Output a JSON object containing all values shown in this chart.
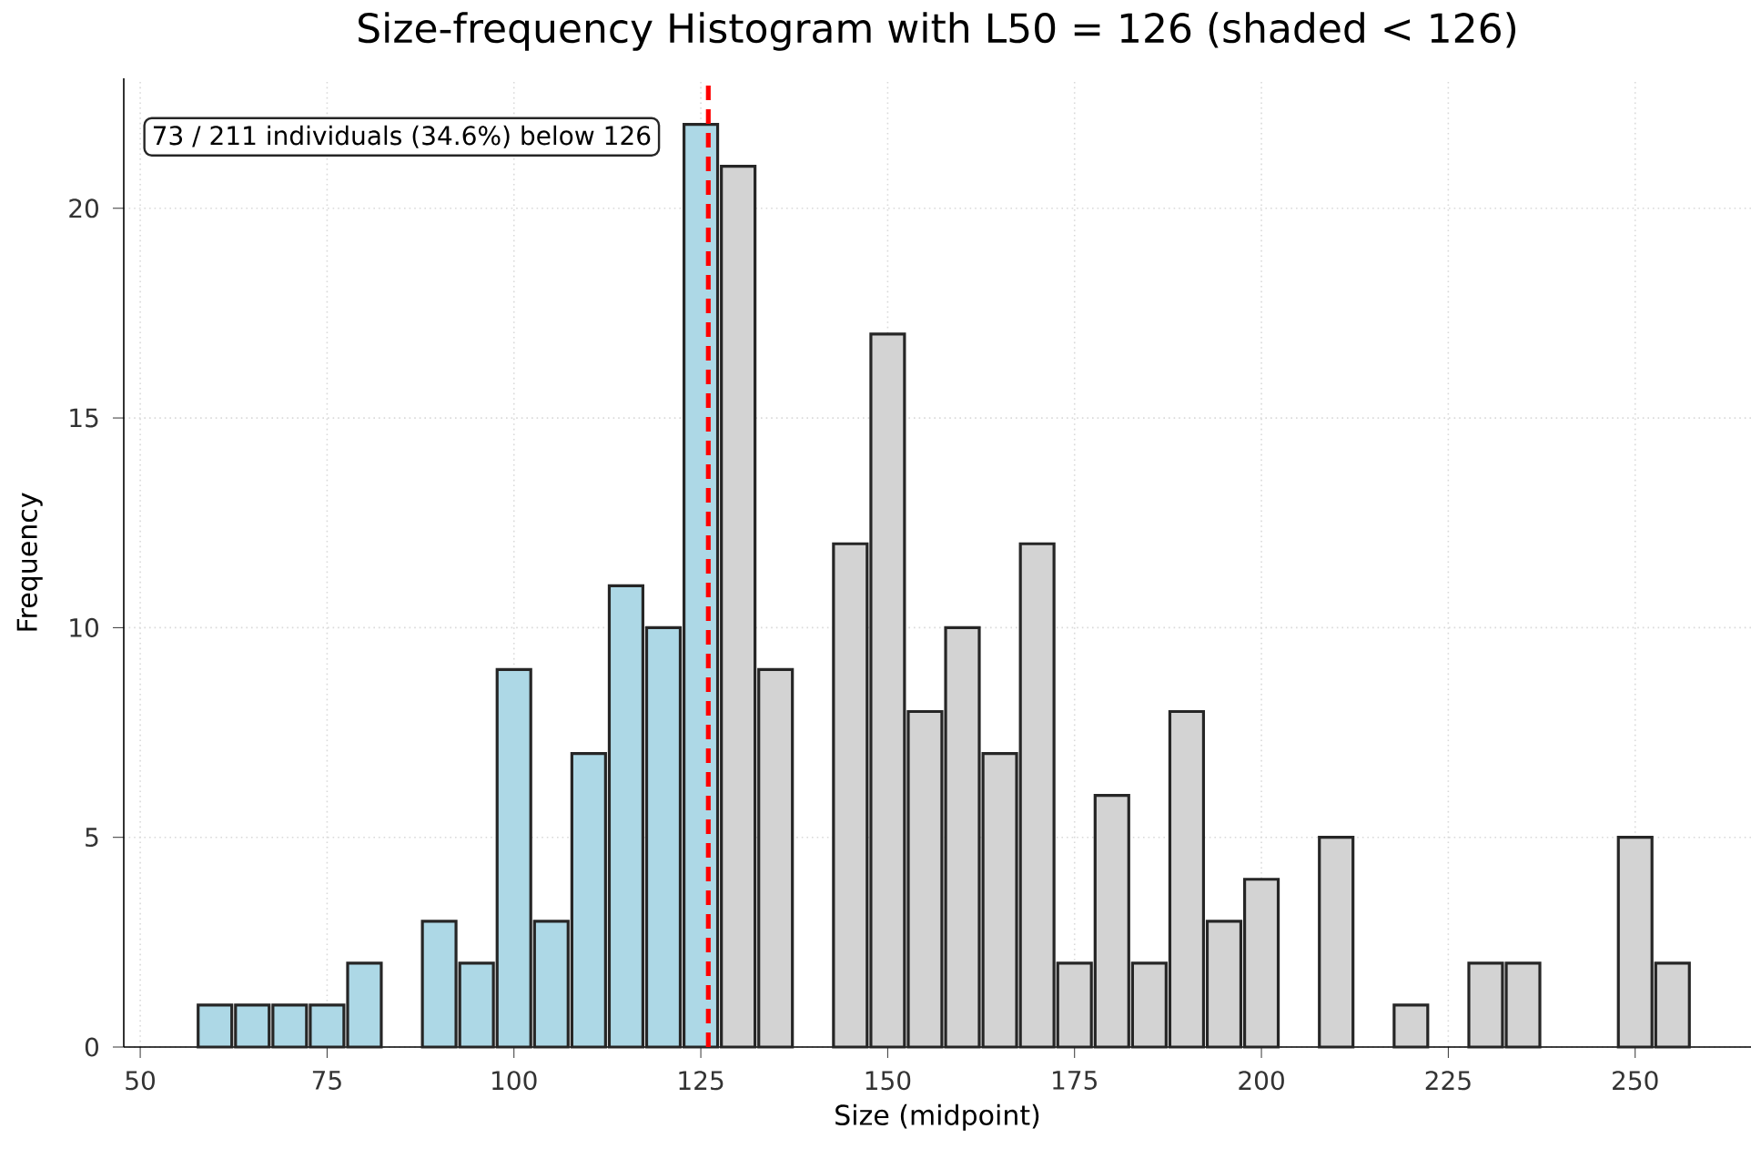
{
  "chart_data": {
    "type": "bar",
    "title": "Size-frequency Histogram with L50 = 126 (shaded < 126)",
    "xlabel": "Size (midpoint)",
    "ylabel": "Frequency",
    "x": [
      60,
      65,
      70,
      75,
      80,
      90,
      95,
      100,
      105,
      110,
      115,
      120,
      125,
      130,
      135,
      145,
      150,
      155,
      160,
      165,
      170,
      175,
      180,
      185,
      190,
      195,
      200,
      210,
      220,
      230,
      235,
      250,
      255
    ],
    "values": [
      1,
      1,
      1,
      1,
      2,
      3,
      2,
      9,
      3,
      7,
      11,
      10,
      22,
      21,
      9,
      12,
      17,
      8,
      10,
      7,
      12,
      2,
      6,
      2,
      8,
      3,
      4,
      5,
      1,
      2,
      2,
      5,
      2
    ],
    "colors": [
      "#add8e6",
      "#add8e6",
      "#add8e6",
      "#add8e6",
      "#add8e6",
      "#add8e6",
      "#add8e6",
      "#add8e6",
      "#add8e6",
      "#add8e6",
      "#add8e6",
      "#add8e6",
      "#add8e6",
      "#d3d3d3",
      "#d3d3d3",
      "#d3d3d3",
      "#d3d3d3",
      "#d3d3d3",
      "#d3d3d3",
      "#d3d3d3",
      "#d3d3d3",
      "#d3d3d3",
      "#d3d3d3",
      "#d3d3d3",
      "#d3d3d3",
      "#d3d3d3",
      "#d3d3d3",
      "#d3d3d3",
      "#d3d3d3",
      "#d3d3d3",
      "#d3d3d3",
      "#d3d3d3",
      "#d3d3d3"
    ],
    "xlim": [
      47.8,
      265.5
    ],
    "ylim": [
      0,
      23.1
    ],
    "xticks": [
      50,
      75,
      100,
      125,
      150,
      175,
      200,
      225,
      250
    ],
    "yticks": [
      0,
      5,
      10,
      15,
      20
    ],
    "grid": true,
    "ref_lines": [
      {
        "axis": "x",
        "value": 126,
        "color": "#ff0000",
        "line_style": "dashed"
      }
    ],
    "annotations": [
      "73 / 211 individuals (34.6%) below 126"
    ]
  }
}
